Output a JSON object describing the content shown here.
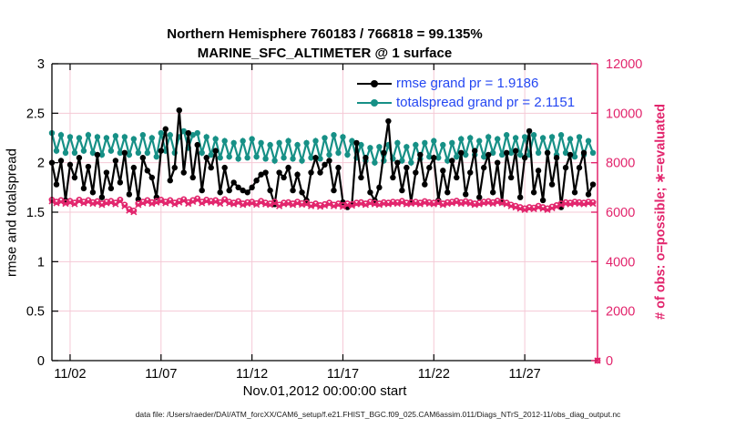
{
  "figure": {
    "title": "Northern Hemisphere 760183 / 766818 = 99.135%",
    "subtitle": "MARINE_SFC_ALTIMETER @ 1 surface",
    "footer": "data file: /Users/raeder/DAI/ATM_forcXX/CAM6_setup/f.e21.FHIST_BGC.f09_025.CAM6assim.011/Diags_NTrS_2012-11/obs_diag_output.nc"
  },
  "colors": {
    "rmse": "#000000",
    "totalspread": "#169086",
    "obs_pink": "#e2246c",
    "grid": "#f5c9d6",
    "legend_text": "#2447f2",
    "axis_black": "#000000"
  },
  "chart_data": {
    "type": "line",
    "title": "Northern Hemisphere 760183 / 766818 = 99.135%",
    "subtitle": "MARINE_SFC_ALTIMETER @ 1 surface",
    "xlabel": "Nov.01,2012 00:00:00 start",
    "ylabel_left": "rmse and totalspread",
    "ylabel_right": "# of obs: o=possible; ∗=evaluated",
    "xlim_days": [
      1,
      31
    ],
    "ylim_left": [
      0,
      3
    ],
    "ylim_right": [
      0,
      12000
    ],
    "grid": true,
    "legend_position": "top-center-right",
    "xticks": [
      {
        "day": 2,
        "label": "11/02"
      },
      {
        "day": 7,
        "label": "11/07"
      },
      {
        "day": 12,
        "label": "11/12"
      },
      {
        "day": 17,
        "label": "11/17"
      },
      {
        "day": 22,
        "label": "11/22"
      },
      {
        "day": 27,
        "label": "11/27"
      }
    ],
    "yticks_left": [
      0,
      0.5,
      1,
      1.5,
      2,
      2.5,
      3
    ],
    "yticks_right": [
      0,
      2000,
      4000,
      6000,
      8000,
      10000,
      12000
    ],
    "series": [
      {
        "name": "rmse",
        "legend": "rmse grand pr = 1.9186",
        "grand_pr": 1.9186,
        "axis": "left",
        "color": "#000000",
        "line": true,
        "marker": "dot",
        "start_day": 1.0,
        "step_days": 0.25,
        "values": [
          2.0,
          1.78,
          2.02,
          1.62,
          1.98,
          1.85,
          2.05,
          1.74,
          1.96,
          1.7,
          2.08,
          1.65,
          1.9,
          1.74,
          2.02,
          1.8,
          2.1,
          1.68,
          1.95,
          1.63,
          2.05,
          1.92,
          1.85,
          1.65,
          2.12,
          2.34,
          1.82,
          1.95,
          2.53,
          1.9,
          2.3,
          1.85,
          2.18,
          1.72,
          2.05,
          1.95,
          2.12,
          1.7,
          1.95,
          1.72,
          1.8,
          1.75,
          1.72,
          1.7,
          1.75,
          1.82,
          1.88,
          1.9,
          1.72,
          1.58,
          1.9,
          1.85,
          1.95,
          1.72,
          1.88,
          1.7,
          1.62,
          1.9,
          2.05,
          1.9,
          1.98,
          2.02,
          1.72,
          1.95,
          1.6,
          1.55,
          1.58,
          2.2,
          1.85,
          2.05,
          1.7,
          1.62,
          1.75,
          2.1,
          2.42,
          1.85,
          2.0,
          1.72,
          1.95,
          1.6,
          1.9,
          2.08,
          1.78,
          1.95,
          2.05,
          1.62,
          1.92,
          1.7,
          2.02,
          1.85,
          2.1,
          1.68,
          1.9,
          2.12,
          1.65,
          1.95,
          2.08,
          1.7,
          2.0,
          1.6,
          2.1,
          1.85,
          2.12,
          1.65,
          2.05,
          2.32,
          1.7,
          1.92,
          1.62,
          2.1,
          1.78,
          2.05,
          1.55,
          1.95,
          2.08,
          1.7,
          1.95,
          2.1,
          1.68,
          1.78
        ]
      },
      {
        "name": "totalspread",
        "legend": "totalspread grand pr = 2.1151",
        "grand_pr": 2.1151,
        "axis": "left",
        "color": "#169086",
        "line": true,
        "marker": "dot",
        "start_day": 1.0,
        "step_days": 0.25,
        "values": [
          2.3,
          2.12,
          2.28,
          2.1,
          2.26,
          2.1,
          2.25,
          2.12,
          2.28,
          2.1,
          2.26,
          2.08,
          2.25,
          2.12,
          2.27,
          2.1,
          2.26,
          2.08,
          2.24,
          2.1,
          2.28,
          2.1,
          2.25,
          2.06,
          2.3,
          2.12,
          2.28,
          2.1,
          2.26,
          2.32,
          2.15,
          2.28,
          2.3,
          2.1,
          2.26,
          2.08,
          2.24,
          2.05,
          2.22,
          2.06,
          2.2,
          2.04,
          2.22,
          2.05,
          2.24,
          2.06,
          2.2,
          2.04,
          2.18,
          2.02,
          2.2,
          2.05,
          2.22,
          2.04,
          2.18,
          2.02,
          2.2,
          2.05,
          2.22,
          2.04,
          2.25,
          2.08,
          2.28,
          2.1,
          2.26,
          2.08,
          2.22,
          2.05,
          2.18,
          2.02,
          2.15,
          2.0,
          2.16,
          2.02,
          2.18,
          2.04,
          2.2,
          2.02,
          2.16,
          2.0,
          2.18,
          2.04,
          2.2,
          2.06,
          2.22,
          2.05,
          2.18,
          2.02,
          2.2,
          2.06,
          2.24,
          2.08,
          2.25,
          2.08,
          2.22,
          2.06,
          2.26,
          2.1,
          2.24,
          2.08,
          2.28,
          2.1,
          2.25,
          2.08,
          2.26,
          2.08,
          2.28,
          2.1,
          2.25,
          2.1,
          2.26,
          2.08,
          2.28,
          2.1,
          2.24,
          2.06,
          2.26,
          2.08,
          2.22,
          2.1
        ]
      },
      {
        "name": "possible_obs",
        "legend": null,
        "axis": "right",
        "color": "#e2246c",
        "line": false,
        "marker": "circle-open",
        "start_day": 1.0,
        "step_days": 0.25,
        "values": [
          6500,
          6420,
          6480,
          6400,
          6450,
          6380,
          6500,
          6420,
          6480,
          6400,
          6440,
          6350,
          6420,
          6450,
          6380,
          6500,
          6300,
          6120,
          6060,
          6350,
          6420,
          6480,
          6400,
          6450,
          6500,
          6420,
          6480,
          6380,
          6450,
          6520,
          6400,
          6480,
          6550,
          6420,
          6500,
          6450,
          6480,
          6400,
          6520,
          6420,
          6380,
          6440,
          6350,
          6400,
          6420,
          6360,
          6450,
          6380,
          6350,
          6420,
          6300,
          6380,
          6400,
          6350,
          6420,
          6360,
          6380,
          6300,
          6350,
          6280,
          6320,
          6380,
          6300,
          6350,
          6280,
          6350,
          6320,
          6380,
          6400,
          6350,
          6420,
          6380,
          6350,
          6400,
          6380,
          6420,
          6400,
          6450,
          6380,
          6400,
          6420,
          6380,
          6440,
          6400,
          6380,
          6420,
          6350,
          6400,
          6420,
          6460,
          6400,
          6440,
          6400,
          6350,
          6380,
          6420,
          6440,
          6400,
          6460,
          6420,
          6380,
          6300,
          6250,
          6200,
          6150,
          6200,
          6180,
          6250,
          6200,
          6150,
          6220,
          6280,
          6350,
          6400,
          6380,
          6420,
          6400,
          6380,
          6420,
          6400,
          0
        ]
      },
      {
        "name": "evaluated_obs",
        "legend": null,
        "axis": "right",
        "color": "#e2246c",
        "line": false,
        "marker": "x",
        "start_day": 1.0,
        "step_days": 0.25,
        "values": [
          6445,
          6365,
          6420,
          6345,
          6395,
          6330,
          6445,
          6365,
          6425,
          6345,
          6385,
          6295,
          6365,
          6395,
          6325,
          6445,
          6245,
          6065,
          6005,
          6295,
          6365,
          6425,
          6345,
          6395,
          6445,
          6365,
          6425,
          6325,
          6395,
          6465,
          6345,
          6425,
          6495,
          6365,
          6445,
          6395,
          6425,
          6345,
          6465,
          6365,
          6325,
          6385,
          6295,
          6345,
          6365,
          6305,
          6395,
          6325,
          6295,
          6365,
          6245,
          6325,
          6345,
          6295,
          6365,
          6305,
          6325,
          6245,
          6295,
          6225,
          6265,
          6325,
          6245,
          6295,
          6225,
          6295,
          6265,
          6325,
          6345,
          6295,
          6365,
          6325,
          6295,
          6345,
          6325,
          6365,
          6345,
          6395,
          6325,
          6345,
          6365,
          6325,
          6385,
          6345,
          6325,
          6365,
          6295,
          6345,
          6365,
          6405,
          6345,
          6385,
          6345,
          6295,
          6325,
          6365,
          6385,
          6345,
          6405,
          6365,
          6325,
          6245,
          6195,
          6145,
          6095,
          6145,
          6125,
          6195,
          6145,
          6095,
          6165,
          6225,
          6295,
          6345,
          6325,
          6365,
          6345,
          6325,
          6365,
          6345,
          0
        ]
      }
    ]
  }
}
